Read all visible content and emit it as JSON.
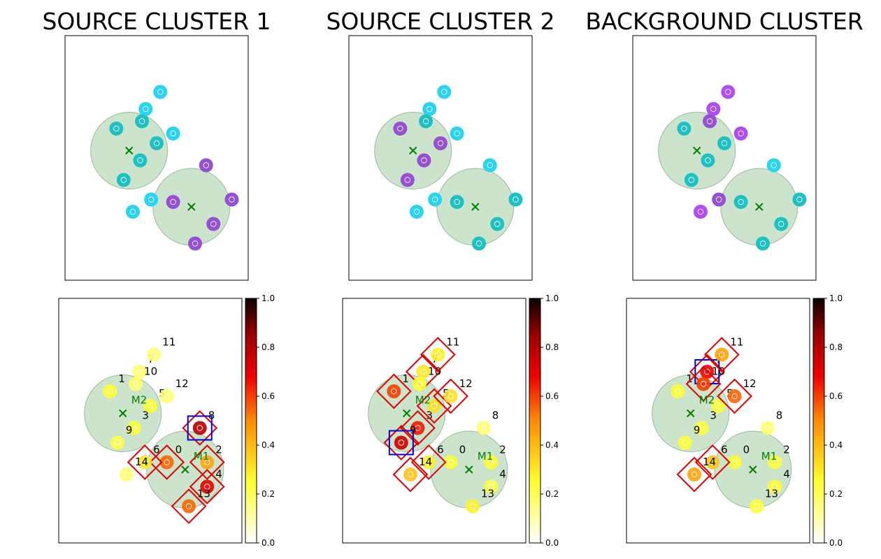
{
  "figure": {
    "columns": [
      {
        "title": "SOURCE CLUSTER 1"
      },
      {
        "title": "SOURCE CLUSTER 2"
      },
      {
        "title": "BACKGROUND CLUSTER"
      }
    ]
  },
  "colors": {
    "cluster_fill": "#cde4cc",
    "cluster_stroke": "#9ab99a",
    "center_marker": "#008000",
    "highlight_diamond": "#e00000",
    "selected_box": "#0000dd",
    "teal": "#1fc0c4",
    "cyan": "#2ad3f2",
    "purple": "#9650d2",
    "violet": "#b04ef2"
  },
  "colorbar": {
    "colormap": "hot_r",
    "ticks": [
      "1.0",
      "0.8",
      "0.6",
      "0.4",
      "0.2",
      "0.0"
    ]
  },
  "chart_data": {
    "type": "scatter",
    "domain_x": [
      0,
      10
    ],
    "domain_y": [
      0,
      10
    ],
    "clusters": [
      {
        "label": "M2",
        "center": [
          3.5,
          5.3
        ],
        "radius": 2.1
      },
      {
        "label": "M1",
        "center": [
          6.9,
          3.0
        ],
        "radius": 2.1
      }
    ],
    "top_points": [
      {
        "x": 5.2,
        "y": 7.7
      },
      {
        "x": 4.4,
        "y": 7.0
      },
      {
        "x": 4.2,
        "y": 6.5
      },
      {
        "x": 2.8,
        "y": 6.2
      },
      {
        "x": 5.9,
        "y": 6.0
      },
      {
        "x": 5.0,
        "y": 5.6
      },
      {
        "x": 4.1,
        "y": 4.9
      },
      {
        "x": 3.2,
        "y": 4.1
      },
      {
        "x": 7.7,
        "y": 4.7
      },
      {
        "x": 4.7,
        "y": 3.3
      },
      {
        "x": 5.9,
        "y": 3.2
      },
      {
        "x": 9.1,
        "y": 3.3
      },
      {
        "x": 3.7,
        "y": 2.8
      },
      {
        "x": 8.1,
        "y": 2.3
      },
      {
        "x": 7.1,
        "y": 1.5
      }
    ],
    "top_panels": [
      {
        "title": "SOURCE CLUSTER 1",
        "colors": [
          "cyan",
          "cyan",
          "teal",
          "teal",
          "cyan",
          "teal",
          "teal",
          "teal",
          "purple",
          "cyan",
          "purple",
          "purple",
          "cyan",
          "purple",
          "purple"
        ]
      },
      {
        "title": "SOURCE CLUSTER 2",
        "colors": [
          "cyan",
          "cyan",
          "teal",
          "purple",
          "cyan",
          "purple",
          "purple",
          "purple",
          "cyan",
          "cyan",
          "teal",
          "teal",
          "cyan",
          "teal",
          "teal"
        ]
      },
      {
        "title": "BACKGROUND CLUSTER",
        "colors": [
          "violet",
          "violet",
          "purple",
          "teal",
          "violet",
          "teal",
          "teal",
          "teal",
          "cyan",
          "purple",
          "teal",
          "teal",
          "violet",
          "teal",
          "teal"
        ]
      }
    ],
    "bottom_points": [
      {
        "id": "0",
        "x": 5.9,
        "y": 3.3
      },
      {
        "id": "1",
        "x": 2.8,
        "y": 6.2
      },
      {
        "id": "2",
        "x": 8.1,
        "y": 3.3
      },
      {
        "id": "3",
        "x": 4.1,
        "y": 4.7
      },
      {
        "id": "4",
        "x": 8.1,
        "y": 2.3
      },
      {
        "id": "5",
        "x": 5.0,
        "y": 5.6
      },
      {
        "id": "6",
        "x": 4.7,
        "y": 3.3
      },
      {
        "id": "7",
        "x": 4.4,
        "y": 7.0
      },
      {
        "id": "8",
        "x": 7.7,
        "y": 4.7
      },
      {
        "id": "9",
        "x": 3.2,
        "y": 4.1
      },
      {
        "id": "10",
        "x": 4.2,
        "y": 6.5
      },
      {
        "id": "11",
        "x": 5.2,
        "y": 7.7
      },
      {
        "id": "12",
        "x": 5.9,
        "y": 6.0
      },
      {
        "id": "13",
        "x": 7.1,
        "y": 1.5
      },
      {
        "id": "14",
        "x": 3.7,
        "y": 2.8
      }
    ],
    "bottom_panels": [
      {
        "title": "SOURCE CLUSTER 1",
        "values": [
          0.55,
          0.25,
          0.45,
          0.25,
          0.7,
          0.25,
          0.3,
          0.18,
          0.8,
          0.22,
          0.18,
          0.18,
          0.18,
          0.55,
          0.18
        ],
        "highlighted": [
          "0",
          "2",
          "4",
          "8",
          "13",
          "6"
        ],
        "selected": "8"
      },
      {
        "title": "SOURCE CLUSTER 2",
        "values": [
          0.25,
          0.6,
          0.25,
          0.65,
          0.22,
          0.32,
          0.28,
          0.3,
          0.18,
          0.75,
          0.25,
          0.28,
          0.32,
          0.28,
          0.38
        ],
        "highlighted": [
          "1",
          "3",
          "5",
          "7",
          "9",
          "11",
          "12",
          "6",
          "14"
        ],
        "selected": "9"
      },
      {
        "title": "BACKGROUND CLUSTER",
        "values": [
          0.25,
          0.25,
          0.25,
          0.25,
          0.25,
          0.25,
          0.38,
          0.68,
          0.18,
          0.25,
          0.6,
          0.45,
          0.55,
          0.25,
          0.45
        ],
        "highlighted": [
          "7",
          "10",
          "11",
          "12",
          "6",
          "14"
        ],
        "selected": "7"
      }
    ]
  }
}
